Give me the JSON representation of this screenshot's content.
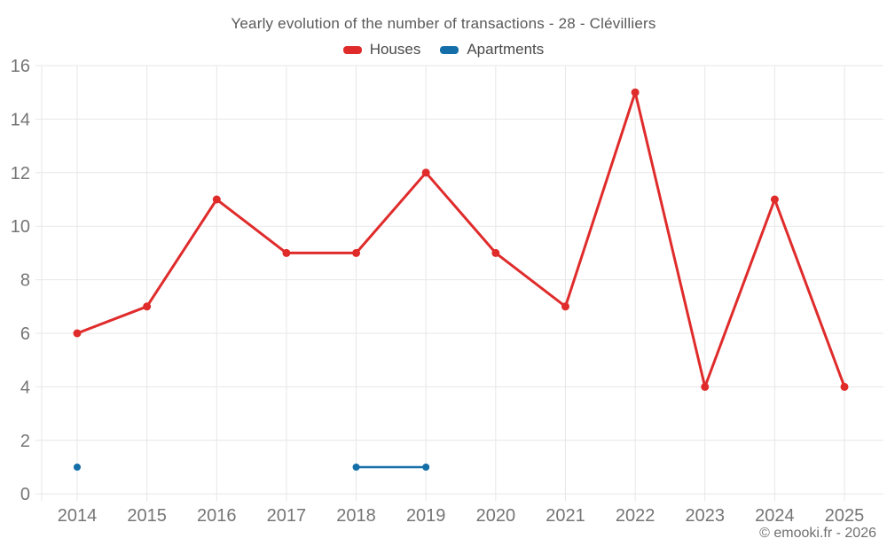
{
  "title": "Yearly evolution of the number of transactions - 28 - Clévilliers",
  "copyright": "© emooki.fr - 2026",
  "legend": {
    "items": [
      {
        "label": "Houses",
        "color": "#e02b2b"
      },
      {
        "label": "Apartments",
        "color": "#146fa8"
      }
    ]
  },
  "chart_data": {
    "type": "line",
    "title": "Yearly evolution of the number of transactions - 28 - Clévilliers",
    "categories": [
      "2014",
      "2015",
      "2016",
      "2017",
      "2018",
      "2019",
      "2020",
      "2021",
      "2022",
      "2023",
      "2024",
      "2025"
    ],
    "series": [
      {
        "name": "Houses",
        "color": "#e02b2b",
        "values": [
          6,
          7,
          11,
          9,
          9,
          12,
          9,
          7,
          15,
          4,
          11,
          4
        ]
      },
      {
        "name": "Apartments",
        "color": "#146fa8",
        "values": [
          1,
          null,
          null,
          null,
          1,
          1,
          null,
          null,
          null,
          null,
          null,
          null
        ]
      }
    ],
    "xlabel": "",
    "ylabel": "",
    "ylim": [
      0,
      16
    ],
    "yticks": [
      0,
      2,
      4,
      6,
      8,
      10,
      12,
      14,
      16
    ],
    "grid": true,
    "legend_position": "top"
  },
  "colors": {
    "grid": "#e7e7e7",
    "tick_text": "#757575",
    "title_text": "#595959",
    "background": "#ffffff"
  }
}
